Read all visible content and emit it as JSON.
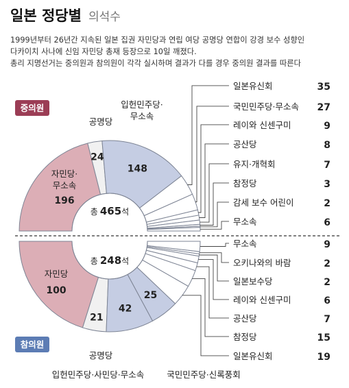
{
  "title": "일본 정당별",
  "subtitle": "의석수",
  "description": [
    "1999년부터 26년간 지속된 일본 집권 자민당과 연립 여당 공명당 연합이 강경 보수 성향인",
    "다카이치 사나에 신임 자민당 총재 등장으로 10일 깨졌다.",
    "총리 지명선거는 중의원과 참의원이 각각 실시하며 결과가 다를 경우 중의원 결과를 따른다"
  ],
  "colors": {
    "ldp": "#dcaeb6",
    "komeito": "#f1f1f1",
    "cdp": "#c5cde3",
    "minor": "#ffffff",
    "outline": "#7d8494",
    "lower_badge": "#9b3d55",
    "upper_badge": "#5c7cb4"
  },
  "chart_data": [
    {
      "type": "pie",
      "subtype": "half-donut",
      "chamber": "중의원",
      "total_label": "총",
      "total": 465,
      "unit": "석",
      "segments": [
        {
          "name": "자민당·무소속",
          "value": 196,
          "color_key": "ldp",
          "label_inside": true
        },
        {
          "name": "공명당",
          "value": 24,
          "color_key": "komeito",
          "label_inside": false
        },
        {
          "name": "입헌민주당·무소속",
          "value": 148,
          "color_key": "cdp",
          "label_inside": false
        },
        {
          "name": "일본유신회",
          "value": 35,
          "color_key": "minor",
          "label_inside": false
        },
        {
          "name": "국민민주당·무소속",
          "value": 27,
          "color_key": "minor",
          "label_inside": false
        },
        {
          "name": "레이와 신센구미",
          "value": 9,
          "color_key": "minor",
          "label_inside": false
        },
        {
          "name": "공산당",
          "value": 8,
          "color_key": "minor",
          "label_inside": false
        },
        {
          "name": "유지·개혁회",
          "value": 7,
          "color_key": "minor",
          "label_inside": false
        },
        {
          "name": "참정당",
          "value": 3,
          "color_key": "minor",
          "label_inside": false
        },
        {
          "name": "감세 보수 어린이",
          "value": 2,
          "color_key": "minor",
          "label_inside": false
        },
        {
          "name": "무소속",
          "value": 6,
          "color_key": "minor",
          "label_inside": false
        }
      ]
    },
    {
      "type": "pie",
      "subtype": "half-donut",
      "chamber": "참의원",
      "total_label": "총",
      "total": 248,
      "unit": "석",
      "segments": [
        {
          "name": "자민당",
          "value": 100,
          "color_key": "ldp",
          "label_inside": true
        },
        {
          "name": "공명당",
          "value": 21,
          "color_key": "komeito",
          "label_inside": false
        },
        {
          "name": "입헌민주당·사민당·무소속",
          "value": 42,
          "color_key": "cdp",
          "label_inside": false
        },
        {
          "name": "국민민주당·신록풍회",
          "value": 25,
          "color_key": "cdp",
          "label_inside": false
        },
        {
          "name": "일본유신회",
          "value": 19,
          "color_key": "minor",
          "label_inside": false
        },
        {
          "name": "참정당",
          "value": 15,
          "color_key": "minor",
          "label_inside": false
        },
        {
          "name": "공산당",
          "value": 7,
          "color_key": "minor",
          "label_inside": false
        },
        {
          "name": "레이와 신센구미",
          "value": 6,
          "color_key": "minor",
          "label_inside": false
        },
        {
          "name": "일본보수당",
          "value": 2,
          "color_key": "minor",
          "label_inside": false
        },
        {
          "name": "오키나와의 바람",
          "value": 2,
          "color_key": "minor",
          "label_inside": false
        },
        {
          "name": "무소속",
          "value": 9,
          "color_key": "minor",
          "label_inside": false
        }
      ]
    }
  ]
}
